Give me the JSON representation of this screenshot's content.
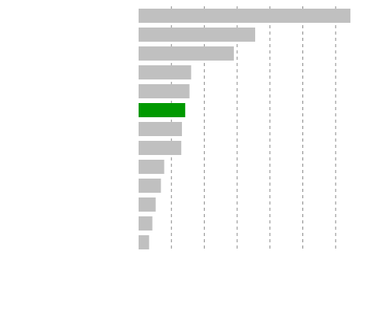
{
  "chart_data": {
    "type": "bar",
    "orientation": "horizontal",
    "title": "",
    "xlabel": "",
    "ylabel": "",
    "xlim": [
      0,
      6.8
    ],
    "grid": "vertical-dashed",
    "categories": [
      "",
      "",
      "",
      "",
      "",
      "",
      "",
      "",
      "",
      "",
      "",
      "",
      ""
    ],
    "values": [
      6.45,
      3.55,
      2.9,
      1.6,
      1.55,
      1.42,
      1.32,
      1.3,
      0.78,
      0.68,
      0.52,
      0.42,
      0.32
    ],
    "highlight_index": 5,
    "colors": {
      "bar": "#c0c0c0",
      "highlight": "#009900",
      "grid": "#8c8c8c"
    }
  }
}
